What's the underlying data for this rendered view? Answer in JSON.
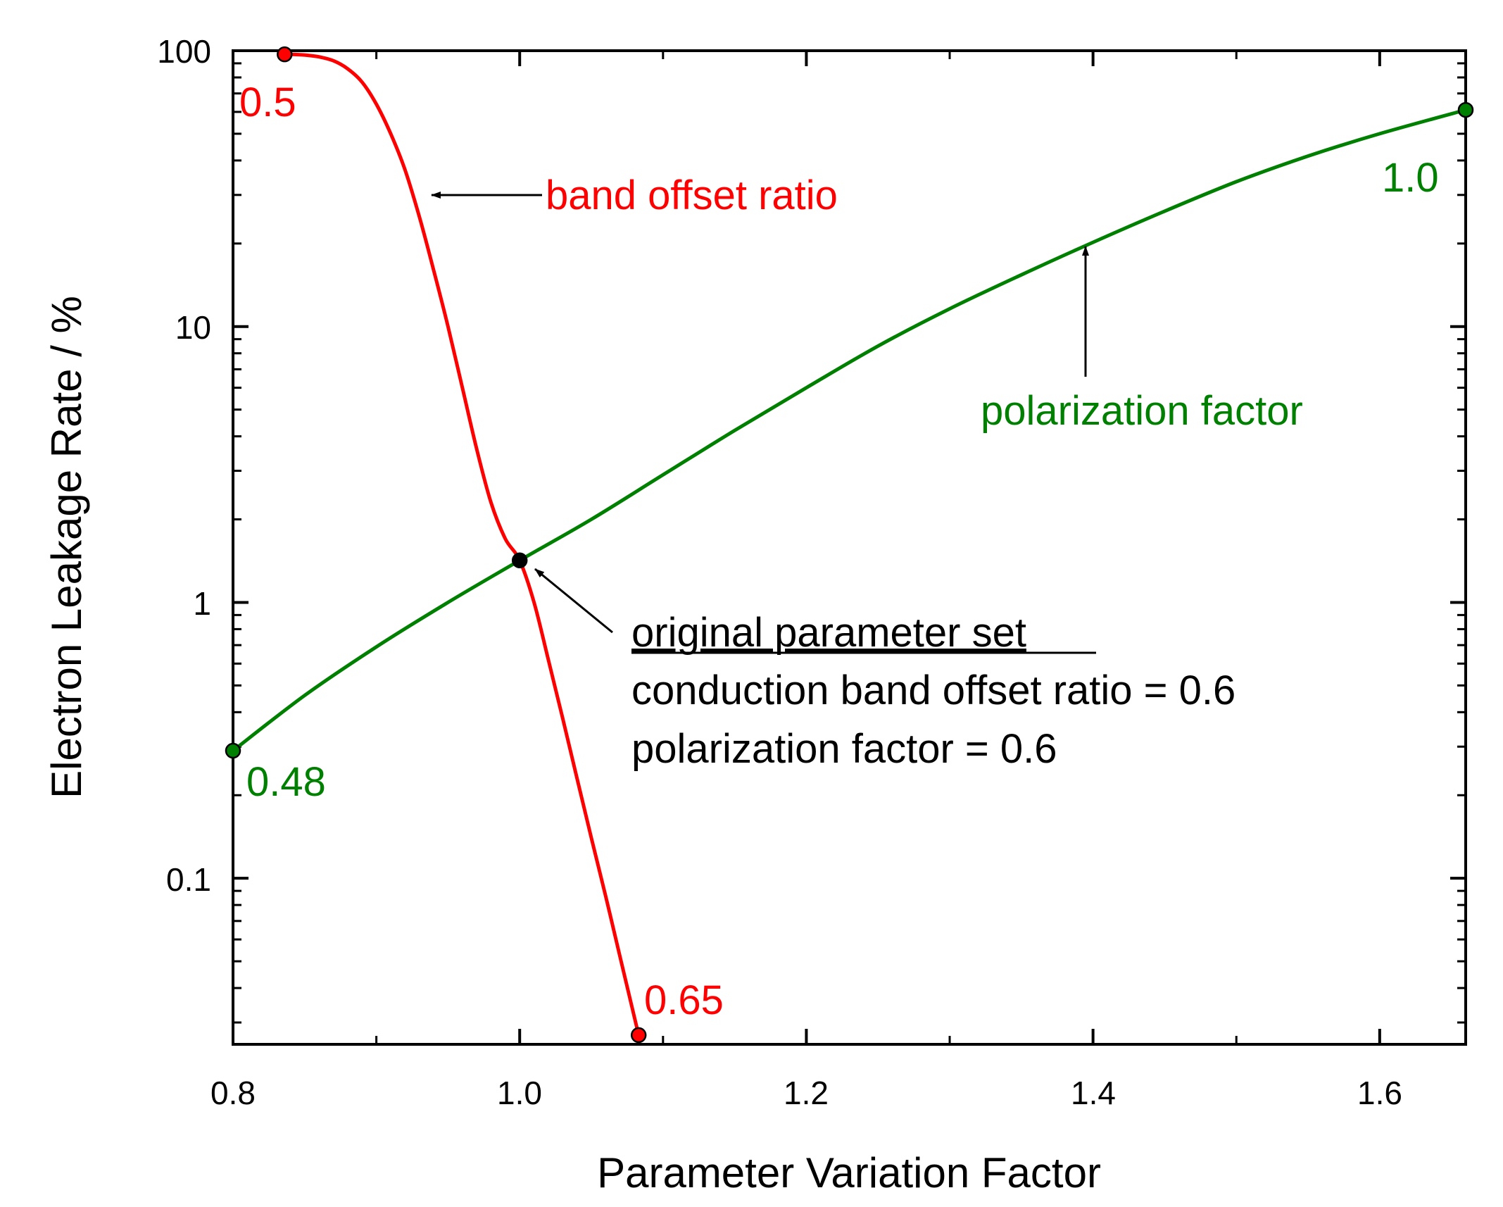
{
  "chart_data": {
    "type": "line",
    "title": "",
    "xlabel": "Parameter Variation Factor",
    "ylabel": "Electron Leakage Rate / %",
    "xlim": [
      0.8,
      1.66
    ],
    "ylim": [
      0.025,
      100
    ],
    "yscale": "log",
    "x_ticks": [
      "0.8",
      "1.0",
      "1.2",
      "1.4",
      "1.6"
    ],
    "y_ticks": [
      "0.1",
      "1",
      "10",
      "100"
    ],
    "grid": false,
    "series": [
      {
        "name": "band offset ratio",
        "color": "#ff0000",
        "x": [
          0.836,
          0.84,
          0.85,
          0.86,
          0.87,
          0.88,
          0.89,
          0.9,
          0.91,
          0.92,
          0.93,
          0.94,
          0.95,
          0.96,
          0.97,
          0.98,
          0.99,
          1.0,
          1.01,
          1.02,
          1.03,
          1.04,
          1.05,
          1.06,
          1.07,
          1.083
        ],
        "y": [
          97,
          97,
          96.5,
          95,
          92,
          86,
          77,
          64,
          50,
          37,
          25,
          16,
          10,
          6,
          3.6,
          2.3,
          1.7,
          1.42,
          1.0,
          0.62,
          0.38,
          0.23,
          0.14,
          0.086,
          0.052,
          0.027
        ]
      },
      {
        "name": "polarization factor",
        "color": "#008000",
        "x": [
          0.8,
          0.85,
          0.9,
          0.95,
          1.0,
          1.05,
          1.1,
          1.15,
          1.2,
          1.25,
          1.3,
          1.35,
          1.4,
          1.45,
          1.5,
          1.55,
          1.6,
          1.66
        ],
        "y": [
          0.29,
          0.46,
          0.69,
          1.0,
          1.42,
          2.0,
          2.9,
          4.2,
          6.0,
          8.5,
          11.6,
          15.4,
          20.2,
          26.2,
          33.5,
          41.5,
          50,
          61
        ]
      }
    ],
    "points": [
      {
        "series": "band offset ratio",
        "x": 0.836,
        "y": 97,
        "label": "0.5",
        "color": "#ff0000"
      },
      {
        "series": "band offset ratio",
        "x": 1.083,
        "y": 0.027,
        "label": "0.65",
        "color": "#ff0000"
      },
      {
        "series": "polarization factor",
        "x": 0.8,
        "y": 0.29,
        "label": "0.48",
        "color": "#008000"
      },
      {
        "series": "polarization factor",
        "x": 1.66,
        "y": 61,
        "label": "1.0",
        "color": "#008000"
      },
      {
        "series": "original",
        "x": 1.0,
        "y": 1.42,
        "label": "",
        "color": "#000000"
      }
    ],
    "annotations": {
      "band_offset_label": "band offset ratio",
      "polarization_label": "polarization factor",
      "original_title": "original parameter set",
      "original_line1": "conduction band offset ratio = 0.6",
      "original_line2": "polarization factor = 0.6"
    }
  }
}
